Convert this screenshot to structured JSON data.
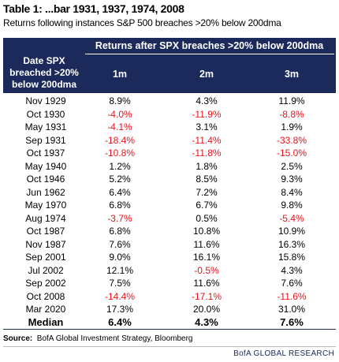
{
  "header": {
    "title": "Table 1: ...bar 1931, 1937, 1974, 2008",
    "subtitle": "Returns following instances S&P 500 breaches >20% below 200dma"
  },
  "table": {
    "group_header": "Returns after SPX breaches >20% below 200dma",
    "columns": [
      "Date SPX breached >20% below 200dma",
      "1m",
      "2m",
      "3m"
    ],
    "rows": [
      [
        "Nov 1929",
        "8.9%",
        "4.3%",
        "11.9%"
      ],
      [
        "Oct 1930",
        "-4.0%",
        "-11.9%",
        "-8.8%"
      ],
      [
        "May 1931",
        "-4.1%",
        "3.1%",
        "1.9%"
      ],
      [
        "Sep 1931",
        "-18.4%",
        "-11.4%",
        "-33.8%"
      ],
      [
        "Oct 1937",
        "-10.8%",
        "-11.8%",
        "-15.0%"
      ],
      [
        "May 1940",
        "1.2%",
        "1.8%",
        "2.5%"
      ],
      [
        "Oct 1946",
        "5.2%",
        "8.5%",
        "9.3%"
      ],
      [
        "Jun 1962",
        "6.4%",
        "7.2%",
        "8.4%"
      ],
      [
        "May 1970",
        "6.8%",
        "6.7%",
        "9.8%"
      ],
      [
        "Aug 1974",
        "-3.7%",
        "0.5%",
        "-5.4%"
      ],
      [
        "Oct 1987",
        "6.8%",
        "10.8%",
        "10.9%"
      ],
      [
        "Nov 1987",
        "7.6%",
        "11.6%",
        "16.3%"
      ],
      [
        "Sep 2001",
        "9.0%",
        "16.1%",
        "15.8%"
      ],
      [
        "Jul 2002",
        "12.1%",
        "-0.5%",
        "4.3%"
      ],
      [
        "Sep 2002",
        "7.5%",
        "11.6%",
        "7.6%"
      ],
      [
        "Oct 2008",
        "-14.4%",
        "-17.1%",
        "-11.6%"
      ],
      [
        "Mar 2020",
        "17.3%",
        "20.0%",
        "31.0%"
      ]
    ],
    "median": [
      "Median",
      "6.4%",
      "4.3%",
      "7.6%"
    ]
  },
  "source": {
    "label": "Source:",
    "text": "BofA Global Investment Strategy, Bloomberg"
  },
  "footer": "BofA GLOBAL RESEARCH"
}
